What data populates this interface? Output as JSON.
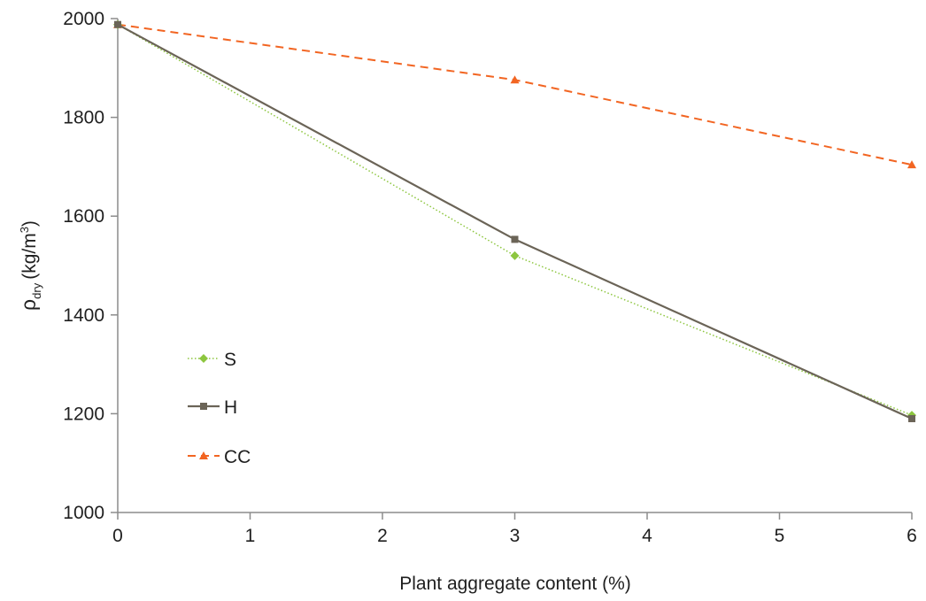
{
  "chart_data": {
    "type": "line",
    "x": [
      0,
      3,
      6
    ],
    "series": [
      {
        "name": "S",
        "values": [
          1988,
          1520,
          1197
        ],
        "color": "#8dc63f",
        "marker": "diamond",
        "dash": "dotted"
      },
      {
        "name": "H",
        "values": [
          1988,
          1553,
          1190
        ],
        "color": "#6b6457",
        "marker": "square",
        "dash": "solid"
      },
      {
        "name": "CC",
        "values": [
          1988,
          1876,
          1704
        ],
        "color": "#f26522",
        "marker": "triangle",
        "dash": "dashed"
      }
    ],
    "xlabel": "Plant aggregate content (%)",
    "ylabel_main": "ρ",
    "ylabel_sub": "dry",
    "ylabel_unit": "(kg/m",
    "ylabel_sup": "3",
    "ylabel_close": ")",
    "xlim": [
      0,
      6
    ],
    "ylim": [
      1000,
      2000
    ],
    "xticks": [
      "0",
      "1",
      "2",
      "3",
      "4",
      "5",
      "6"
    ],
    "yticks": [
      "1000",
      "1200",
      "1400",
      "1600",
      "1800",
      "2000"
    ],
    "grid": false,
    "legend_position": "left-middle"
  }
}
